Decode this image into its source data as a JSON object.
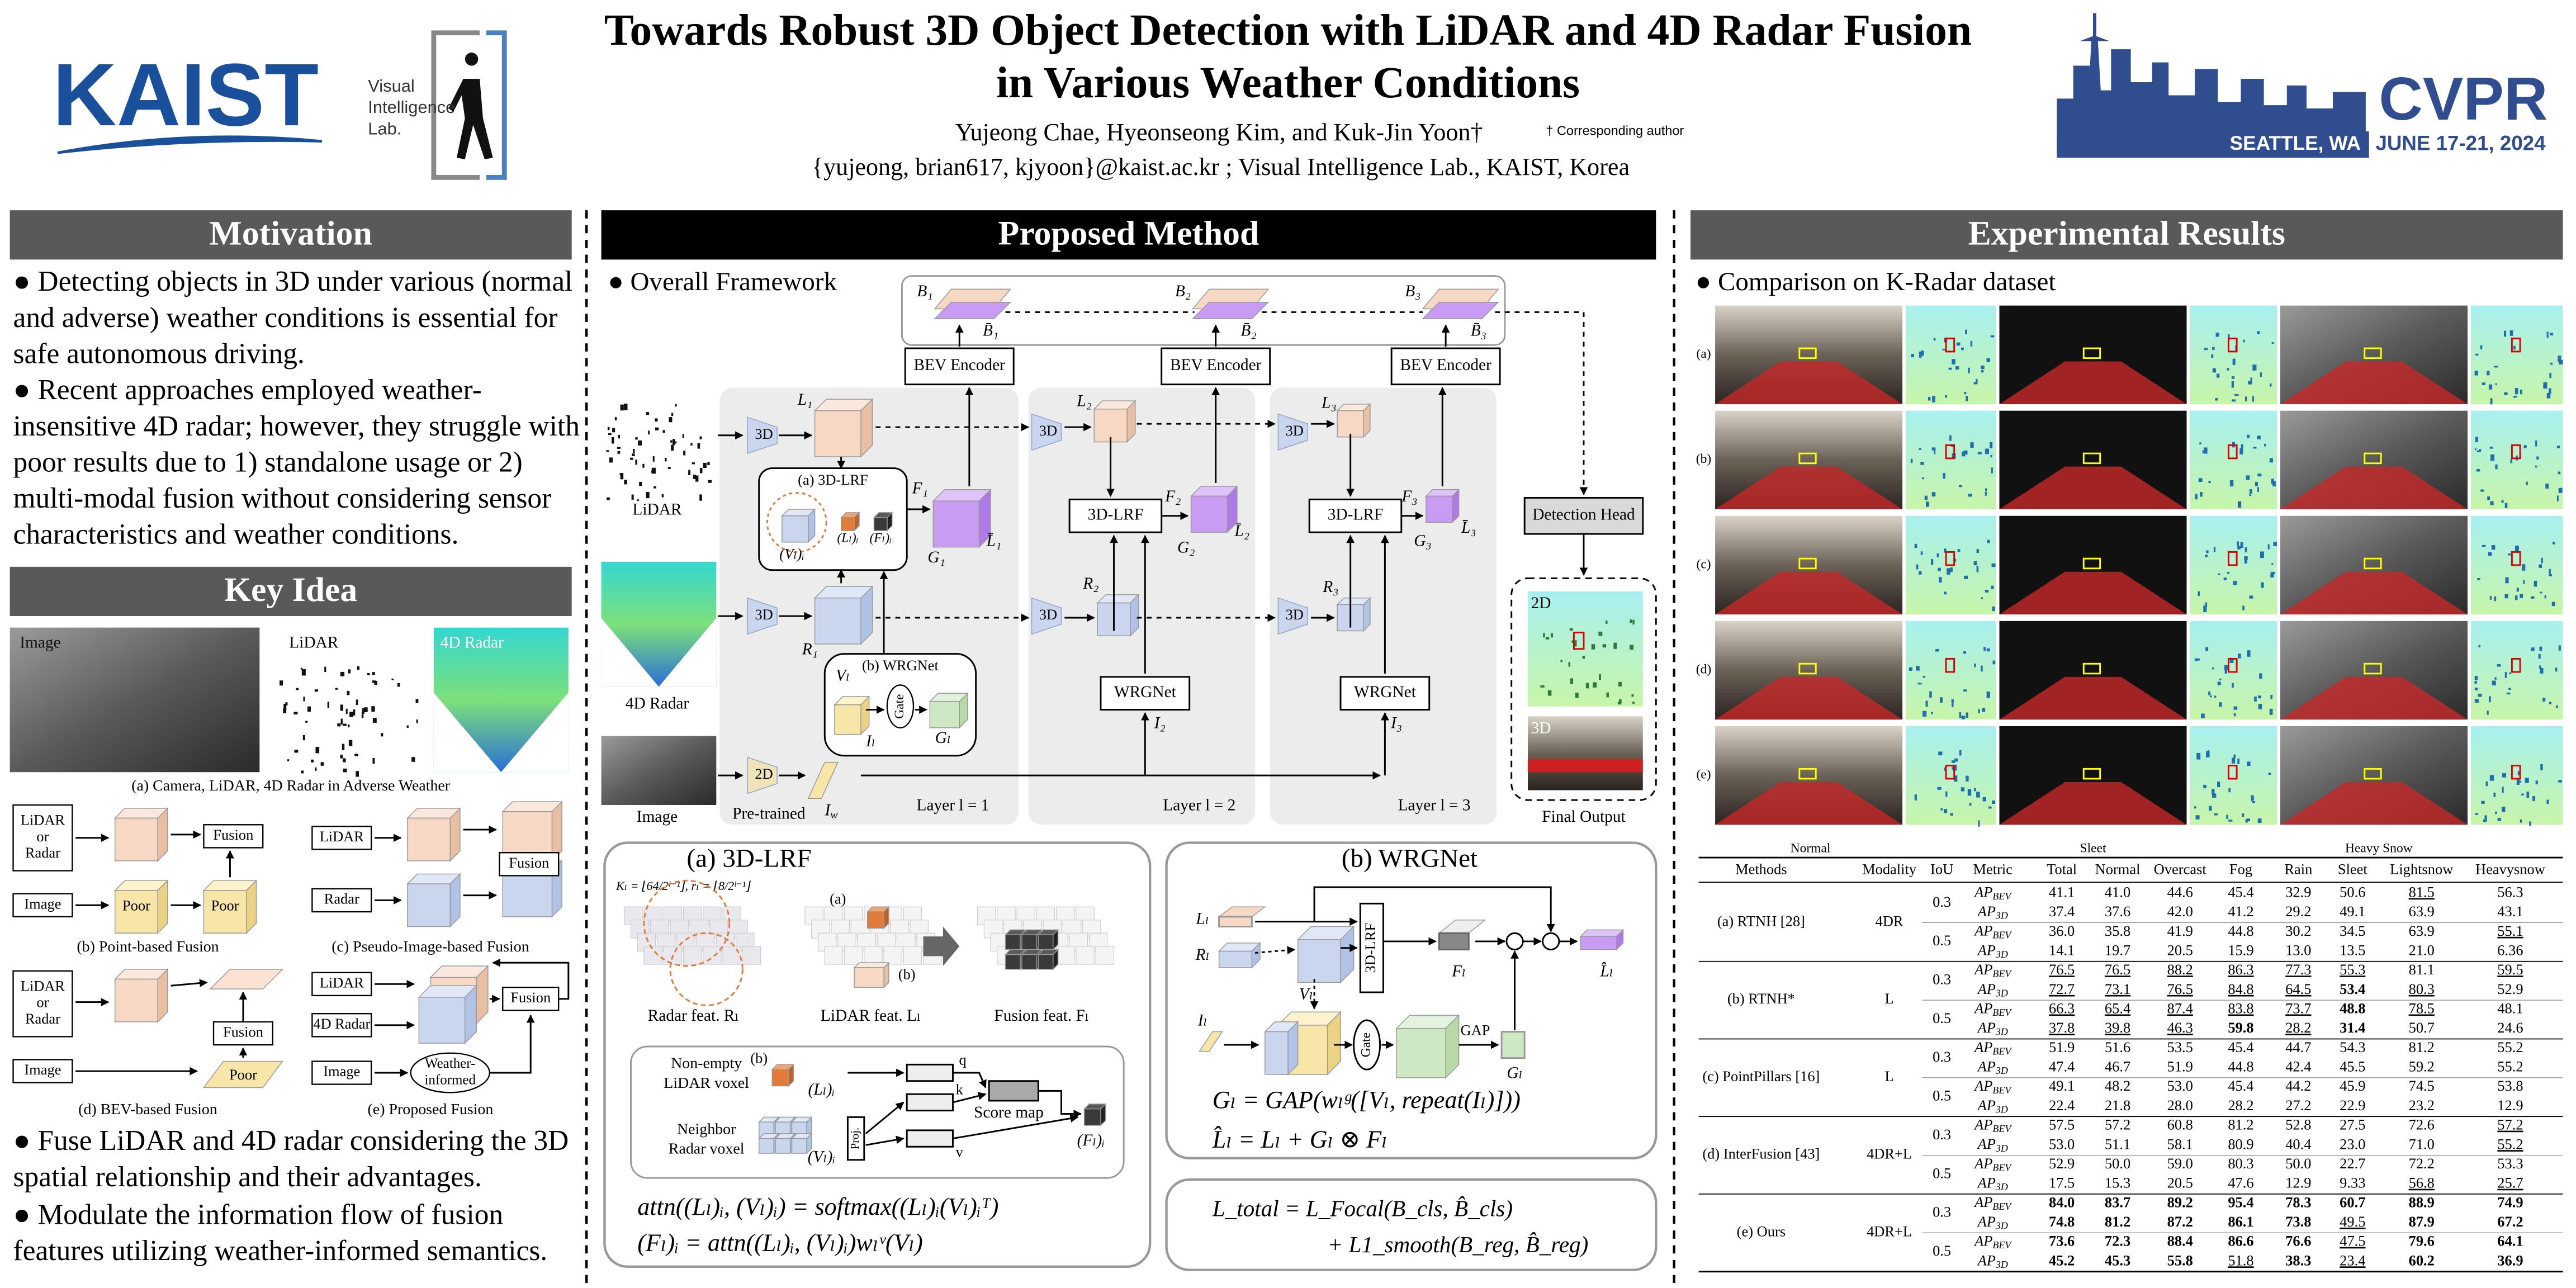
{
  "header": {
    "title_lines": [
      "Towards Robust 3D Object Detection with LiDAR and 4D Radar Fusion",
      "in Various Weather Conditions"
    ],
    "authors": "Yujeong Chae, Hyeonseong Kim, and Kuk-Jin Yoon†",
    "corresponding": "† Corresponding author",
    "affiliation": "{yujeong, brian617, kjyoon}@kaist.ac.kr ; Visual Intelligence Lab., KAIST, Korea",
    "kaist_logo": "KAIST",
    "lab_logo": [
      "Visual",
      "Intelligence",
      "Lab."
    ],
    "cvpr_logo": {
      "name": "CVPR",
      "place": "SEATTLE, WA",
      "dates": "JUNE 17-21, 2024"
    }
  },
  "motivation": {
    "heading": "Motivation",
    "bullets": [
      "● Detecting objects in 3D under various (normal and adverse) weather conditions is essential for safe autonomous driving.",
      "● Recent approaches employed weather-insensitive 4D radar; however, they struggle with poor results due to 1) standalone usage or 2) multi-modal fusion without considering sensor characteristics and weather conditions."
    ]
  },
  "key_idea": {
    "heading": "Key Idea",
    "inputs": [
      "Image",
      "LiDAR",
      "4D Radar"
    ],
    "caption_a": "(a) Camera, LiDAR, 4D Radar in Adverse Weather",
    "lidar_or_radar": [
      "LiDAR",
      "or",
      "Radar"
    ],
    "lidar": "LiDAR",
    "radar": "Radar",
    "radar_4d": "4D Radar",
    "image": "Image",
    "fusion": "Fusion",
    "poor": "Poor",
    "weather_informed": [
      "Weather-",
      "informed"
    ],
    "captions": [
      "(b) Point-based Fusion",
      "(c) Pseudo-Image-based Fusion",
      "(d) BEV-based Fusion",
      "(e) Proposed Fusion"
    ],
    "bullets": [
      "● Fuse LiDAR and 4D radar considering the 3D spatial relationship and their advantages.",
      "● Modulate the information flow of fusion features utilizing weather-informed semantics."
    ]
  },
  "method": {
    "heading": "Proposed Method",
    "framework": {
      "heading": "● Overall Framework",
      "inputs": [
        "LiDAR",
        "4D Radar",
        "Image"
      ],
      "enc3d": "3D",
      "enc2d": "2D",
      "pretrained": "Pre-trained",
      "bev_encoder": "BEV Encoder",
      "lrf": "3D-LRF",
      "wrg": "WRGNet",
      "lrf_inset": "(a) 3D-LRF",
      "wrg_inset": "(b) WRGNet",
      "gate": "Gate",
      "layers": [
        "Layer l = 1",
        "Layer l = 2",
        "Layer l = 3"
      ],
      "detection_head": "Detection Head",
      "final_output": "Final Output",
      "output_labels": [
        "2D",
        "3D"
      ],
      "L": [
        "L₁",
        "L₂",
        "L₃"
      ],
      "R": [
        "R₁",
        "R₂",
        "R₃"
      ],
      "F": [
        "F₁",
        "F₂",
        "F₃"
      ],
      "G": [
        "G₁",
        "G₂",
        "G₃"
      ],
      "Lbar": [
        "L̄₁",
        "L̄₂",
        "L̄₃"
      ],
      "B": [
        "B₁",
        "B₂",
        "B₃"
      ],
      "Bbar": [
        "B̄₁",
        "B̄₂",
        "B̄₃"
      ],
      "I": [
        "I₂",
        "I₃"
      ],
      "Vl_i": "(Vₗ)ᵢ",
      "Ll_i": "(Lₗ)ᵢ",
      "Fl_i": "(Fₗ)ᵢ",
      "Vl": "Vₗ",
      "Il": "Iₗ",
      "Gl": "Gₗ",
      "Iw": {
        "base": "I",
        "sub": "w"
      }
    },
    "lrf": {
      "title": "(a) 3D-LRF",
      "formula": "Kₗ = ⌊64/2ˡ⁻¹⌋,  rₗ = ⌊8/2ˡ⁻¹⌋",
      "feats": [
        "Radar feat. Rₗ",
        "LiDAR feat. Lₗ",
        "Fusion feat. Fₗ"
      ],
      "marks": [
        "(a)",
        "(b)"
      ],
      "lidar_voxel": [
        "Non-empty",
        "LiDAR voxel"
      ],
      "radar_voxel": [
        "Neighbor",
        "Radar voxel"
      ],
      "qkv": [
        "q",
        "k",
        "v"
      ],
      "proj": "Proj.",
      "score_map": "Score map",
      "Ll_i": "(Lₗ)ᵢ",
      "Vl_i": "(Vₗ)ᵢ",
      "Fl_i": "(Fₗ)ᵢ",
      "equations": [
        "attn((Lₗ)ᵢ, (Vₗ)ᵢ) = softmax((Lₗ)ᵢ(Vₗ)ᵢᵀ)",
        "(Fₗ)ᵢ = attn((Lₗ)ᵢ, (Vₗ)ᵢ)wₗᵛ(Vₗ)"
      ]
    },
    "wrg": {
      "title": "(b) WRGNet",
      "labels": {
        "L": "Lₗ",
        "R": "Rₗ",
        "V": "Vₗ",
        "I": "Iₗ",
        "F": "Fₗ",
        "G": "Gₗ",
        "Lhat": "L̂ₗ",
        "lrf": "3D-LRF",
        "gate": "Gate",
        "gap": "GAP"
      },
      "equations": [
        "Gₗ = GAP(wₗᵍ([Vₗ, repeat(Iₗ)]))",
        "L̂ₗ = Lₗ + Gₗ ⊗ Fₗ"
      ]
    },
    "loss": [
      "L_total = L_Focal(B_cls, B̂_cls)",
      "+ L1_smooth(B_reg, B̂_reg)"
    ]
  },
  "results": {
    "heading": "Experimental Results",
    "bullet": "● Comparison on K-Radar dataset",
    "row_labels": [
      "(a)",
      "(b)",
      "(c)",
      "(d)",
      "(e)"
    ],
    "columns": [
      "Normal",
      "Sleet",
      "Heavy Snow"
    ],
    "table": {
      "header": [
        "Methods",
        "Modality",
        "IoU",
        "Metric",
        "Total",
        "Normal",
        "Overcast",
        "Fog",
        "Rain",
        "Sleet",
        "Lightsnow",
        "Heavysnow"
      ],
      "metrics": [
        {
          "base": "AP",
          "sub": "BEV"
        },
        {
          "base": "AP",
          "sub": "3D"
        }
      ],
      "groups": [
        {
          "method": "(a) RTNH [28]",
          "modality": "4DR",
          "iou": [
            {
              "value": "0.3",
              "rows": [
                {
                  "cells": [
                    "41.1",
                    "41.0",
                    "44.6",
                    "45.4",
                    "32.9",
                    "50.6",
                    "81.5",
                    "56.3"
                  ],
                  "bold": [],
                  "underline": [
                    6
                  ]
                },
                {
                  "cells": [
                    "37.4",
                    "37.6",
                    "42.0",
                    "41.2",
                    "29.2",
                    "49.1",
                    "63.9",
                    "43.1"
                  ],
                  "bold": [],
                  "underline": []
                }
              ]
            },
            {
              "value": "0.5",
              "rows": [
                {
                  "cells": [
                    "36.0",
                    "35.8",
                    "41.9",
                    "44.8",
                    "30.2",
                    "34.5",
                    "63.9",
                    "55.1"
                  ],
                  "bold": [],
                  "underline": [
                    7
                  ]
                },
                {
                  "cells": [
                    "14.1",
                    "19.7",
                    "20.5",
                    "15.9",
                    "13.0",
                    "13.5",
                    "21.0",
                    "6.36"
                  ],
                  "bold": [],
                  "underline": []
                }
              ]
            }
          ]
        },
        {
          "method": "(b) RTNH*",
          "modality": "L",
          "iou": [
            {
              "value": "0.3",
              "rows": [
                {
                  "cells": [
                    "76.5",
                    "76.5",
                    "88.2",
                    "86.3",
                    "77.3",
                    "55.3",
                    "81.1",
                    "59.5"
                  ],
                  "bold": [],
                  "underline": [
                    0,
                    1,
                    2,
                    3,
                    4,
                    5,
                    7
                  ]
                },
                {
                  "cells": [
                    "72.7",
                    "73.1",
                    "76.5",
                    "84.8",
                    "64.5",
                    "53.4",
                    "80.3",
                    "52.9"
                  ],
                  "bold": [
                    5
                  ],
                  "underline": [
                    0,
                    1,
                    2,
                    3,
                    4,
                    6
                  ]
                }
              ]
            },
            {
              "value": "0.5",
              "rows": [
                {
                  "cells": [
                    "66.3",
                    "65.4",
                    "87.4",
                    "83.8",
                    "73.7",
                    "48.8",
                    "78.5",
                    "48.1"
                  ],
                  "bold": [
                    5
                  ],
                  "underline": [
                    0,
                    1,
                    2,
                    3,
                    4,
                    6
                  ]
                },
                {
                  "cells": [
                    "37.8",
                    "39.8",
                    "46.3",
                    "59.8",
                    "28.2",
                    "31.4",
                    "50.7",
                    "24.6"
                  ],
                  "bold": [
                    3,
                    5
                  ],
                  "underline": [
                    0,
                    1,
                    2,
                    4
                  ]
                }
              ]
            }
          ]
        },
        {
          "method": "(c) PointPillars [16]",
          "modality": "L",
          "iou": [
            {
              "value": "0.3",
              "rows": [
                {
                  "cells": [
                    "51.9",
                    "51.6",
                    "53.5",
                    "45.4",
                    "44.7",
                    "54.3",
                    "81.2",
                    "55.2"
                  ],
                  "bold": [],
                  "underline": []
                },
                {
                  "cells": [
                    "47.4",
                    "46.7",
                    "51.9",
                    "44.8",
                    "42.4",
                    "45.5",
                    "59.2",
                    "55.2"
                  ],
                  "bold": [],
                  "underline": []
                }
              ]
            },
            {
              "value": "0.5",
              "rows": [
                {
                  "cells": [
                    "49.1",
                    "48.2",
                    "53.0",
                    "45.4",
                    "44.2",
                    "45.9",
                    "74.5",
                    "53.8"
                  ],
                  "bold": [],
                  "underline": []
                },
                {
                  "cells": [
                    "22.4",
                    "21.8",
                    "28.0",
                    "28.2",
                    "27.2",
                    "22.9",
                    "23.2",
                    "12.9"
                  ],
                  "bold": [],
                  "underline": []
                }
              ]
            }
          ]
        },
        {
          "method": "(d) InterFusion [43]",
          "modality": "4DR+L",
          "iou": [
            {
              "value": "0.3",
              "rows": [
                {
                  "cells": [
                    "57.5",
                    "57.2",
                    "60.8",
                    "81.2",
                    "52.8",
                    "27.5",
                    "72.6",
                    "57.2"
                  ],
                  "bold": [],
                  "underline": [
                    7
                  ]
                },
                {
                  "cells": [
                    "53.0",
                    "51.1",
                    "58.1",
                    "80.9",
                    "40.4",
                    "23.0",
                    "71.0",
                    "55.2"
                  ],
                  "bold": [],
                  "underline": [
                    7
                  ]
                }
              ]
            },
            {
              "value": "0.5",
              "rows": [
                {
                  "cells": [
                    "52.9",
                    "50.0",
                    "59.0",
                    "80.3",
                    "50.0",
                    "22.7",
                    "72.2",
                    "53.3"
                  ],
                  "bold": [],
                  "underline": []
                },
                {
                  "cells": [
                    "17.5",
                    "15.3",
                    "20.5",
                    "47.6",
                    "12.9",
                    "9.33",
                    "56.8",
                    "25.7"
                  ],
                  "bold": [],
                  "underline": [
                    6,
                    7
                  ]
                }
              ]
            }
          ]
        },
        {
          "method": "(e) Ours",
          "modality": "4DR+L",
          "iou": [
            {
              "value": "0.3",
              "rows": [
                {
                  "cells": [
                    "84.0",
                    "83.7",
                    "89.2",
                    "95.4",
                    "78.3",
                    "60.7",
                    "88.9",
                    "74.9"
                  ],
                  "bold": [
                    0,
                    1,
                    2,
                    3,
                    4,
                    5,
                    6,
                    7
                  ],
                  "underline": []
                },
                {
                  "cells": [
                    "74.8",
                    "81.2",
                    "87.2",
                    "86.1",
                    "73.8",
                    "49.5",
                    "87.9",
                    "67.2"
                  ],
                  "bold": [
                    0,
                    1,
                    2,
                    3,
                    4,
                    6,
                    7
                  ],
                  "underline": [
                    5
                  ]
                }
              ]
            },
            {
              "value": "0.5",
              "rows": [
                {
                  "cells": [
                    "73.6",
                    "72.3",
                    "88.4",
                    "86.6",
                    "76.6",
                    "47.5",
                    "79.6",
                    "64.1"
                  ],
                  "bold": [
                    0,
                    1,
                    2,
                    3,
                    4,
                    6,
                    7
                  ],
                  "underline": [
                    5
                  ]
                },
                {
                  "cells": [
                    "45.2",
                    "45.3",
                    "55.8",
                    "51.8",
                    "38.3",
                    "23.4",
                    "60.2",
                    "36.9"
                  ],
                  "bold": [
                    0,
                    1,
                    2,
                    4,
                    6,
                    7
                  ],
                  "underline": [
                    3,
                    5
                  ]
                }
              ]
            }
          ]
        }
      ]
    }
  }
}
